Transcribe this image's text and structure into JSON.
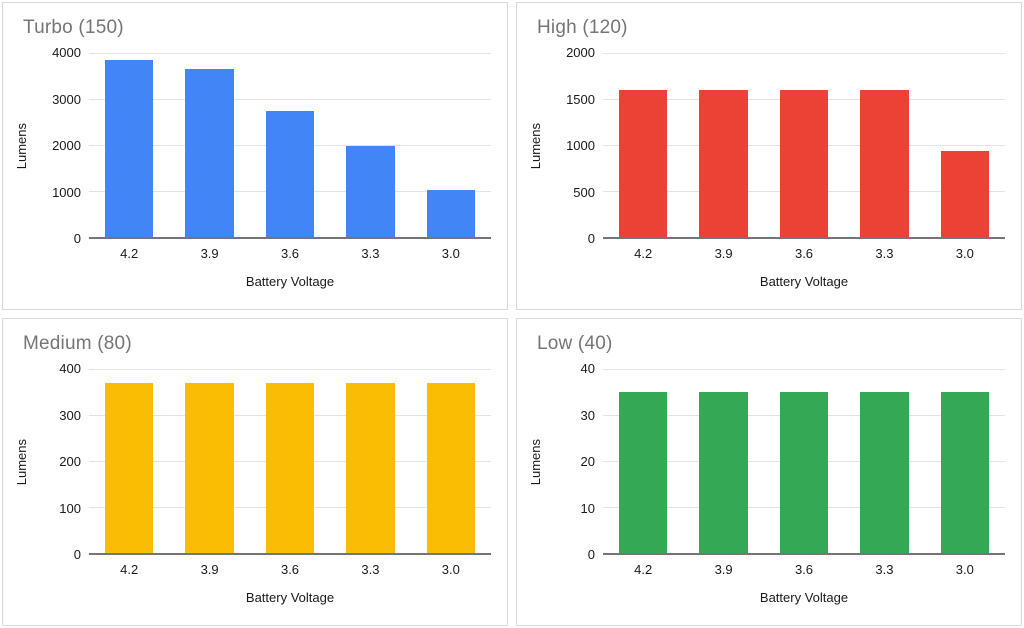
{
  "theme": {
    "page_background": "#ffffff",
    "card_border_color": "#d9d9d9",
    "title_color": "#757575",
    "tick_label_color": "#1a1a1a",
    "gridline_color": "#e3e3e3",
    "axis_line_color": "#757575"
  },
  "chart_data": [
    {
      "type": "bar",
      "title": "Turbo (150)",
      "xlabel": "Battery Voltage",
      "ylabel": "Lumens",
      "categories": [
        "4.2",
        "3.9",
        "3.6",
        "3.3",
        "3.0"
      ],
      "values": [
        3850,
        3650,
        2750,
        1980,
        1030
      ],
      "ylim": [
        0,
        4000
      ],
      "yticks": [
        0,
        1000,
        2000,
        3000,
        4000
      ],
      "bar_color": "#4285f4",
      "grid": true,
      "legend": "none"
    },
    {
      "type": "bar",
      "title": "High (120)",
      "xlabel": "Battery Voltage",
      "ylabel": "Lumens",
      "categories": [
        "4.2",
        "3.9",
        "3.6",
        "3.3",
        "3.0"
      ],
      "values": [
        1600,
        1600,
        1600,
        1600,
        930
      ],
      "ylim": [
        0,
        2000
      ],
      "yticks": [
        0,
        500,
        1000,
        1500,
        2000
      ],
      "bar_color": "#ea4335",
      "grid": true,
      "legend": "none"
    },
    {
      "type": "bar",
      "title": "Medium (80)",
      "xlabel": "Battery Voltage",
      "ylabel": "Lumens",
      "categories": [
        "4.2",
        "3.9",
        "3.6",
        "3.3",
        "3.0"
      ],
      "values": [
        370,
        370,
        370,
        370,
        370
      ],
      "ylim": [
        0,
        400
      ],
      "yticks": [
        0,
        100,
        200,
        300,
        400
      ],
      "bar_color": "#fbbc04",
      "grid": true,
      "legend": "none"
    },
    {
      "type": "bar",
      "title": "Low (40)",
      "xlabel": "Battery Voltage",
      "ylabel": "Lumens",
      "categories": [
        "4.2",
        "3.9",
        "3.6",
        "3.3",
        "3.0"
      ],
      "values": [
        35,
        35,
        35,
        35,
        35
      ],
      "ylim": [
        0,
        40
      ],
      "yticks": [
        0,
        10,
        20,
        30,
        40
      ],
      "bar_color": "#34a853",
      "grid": true,
      "legend": "none"
    }
  ]
}
